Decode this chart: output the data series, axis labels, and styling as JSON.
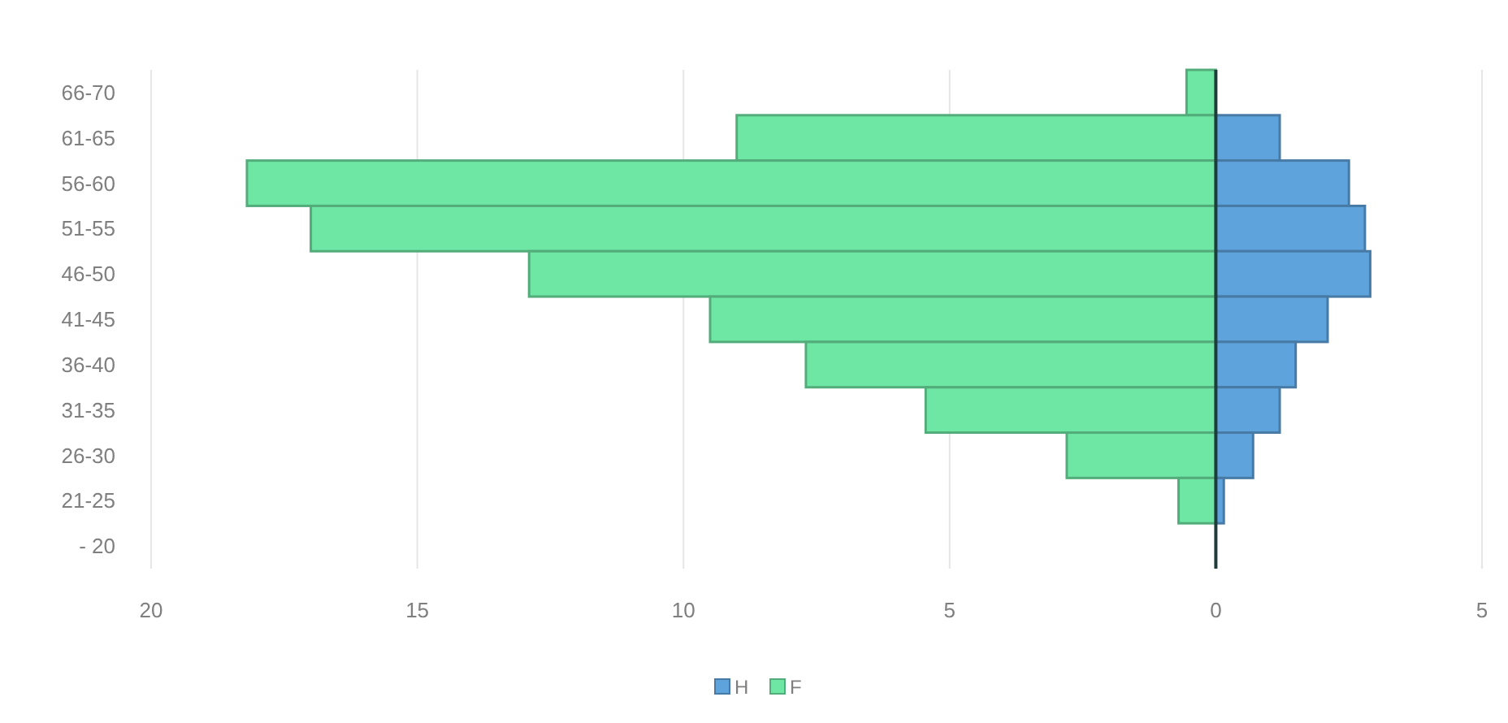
{
  "chart_data": {
    "type": "bar",
    "orientation": "horizontal",
    "stacked": true,
    "categories": [
      "66-70",
      "61-65",
      "56-60",
      "51-55",
      "46-50",
      "41-45",
      "36-40",
      "31-35",
      "26-30",
      "21-25",
      "- 20"
    ],
    "series": [
      {
        "name": "H",
        "color": "#5fa3dc",
        "values": [
          0,
          1.2,
          2.5,
          2.8,
          2.9,
          2.1,
          1.5,
          1.2,
          0.7,
          0.15,
          0
        ]
      },
      {
        "name": "F",
        "color": "#6ee6a4",
        "values": [
          -0.55,
          -9,
          -18.2,
          -17,
          -12.9,
          -9.5,
          -7.7,
          -5.45,
          -2.8,
          -0.7,
          0
        ]
      }
    ],
    "xlim": [
      -20,
      5
    ],
    "xticks": [
      {
        "value": -20,
        "label": "20"
      },
      {
        "value": -15,
        "label": "15"
      },
      {
        "value": -10,
        "label": "10"
      },
      {
        "value": -5,
        "label": "5"
      },
      0,
      5
    ],
    "grid": "x",
    "legend": "bottom"
  }
}
